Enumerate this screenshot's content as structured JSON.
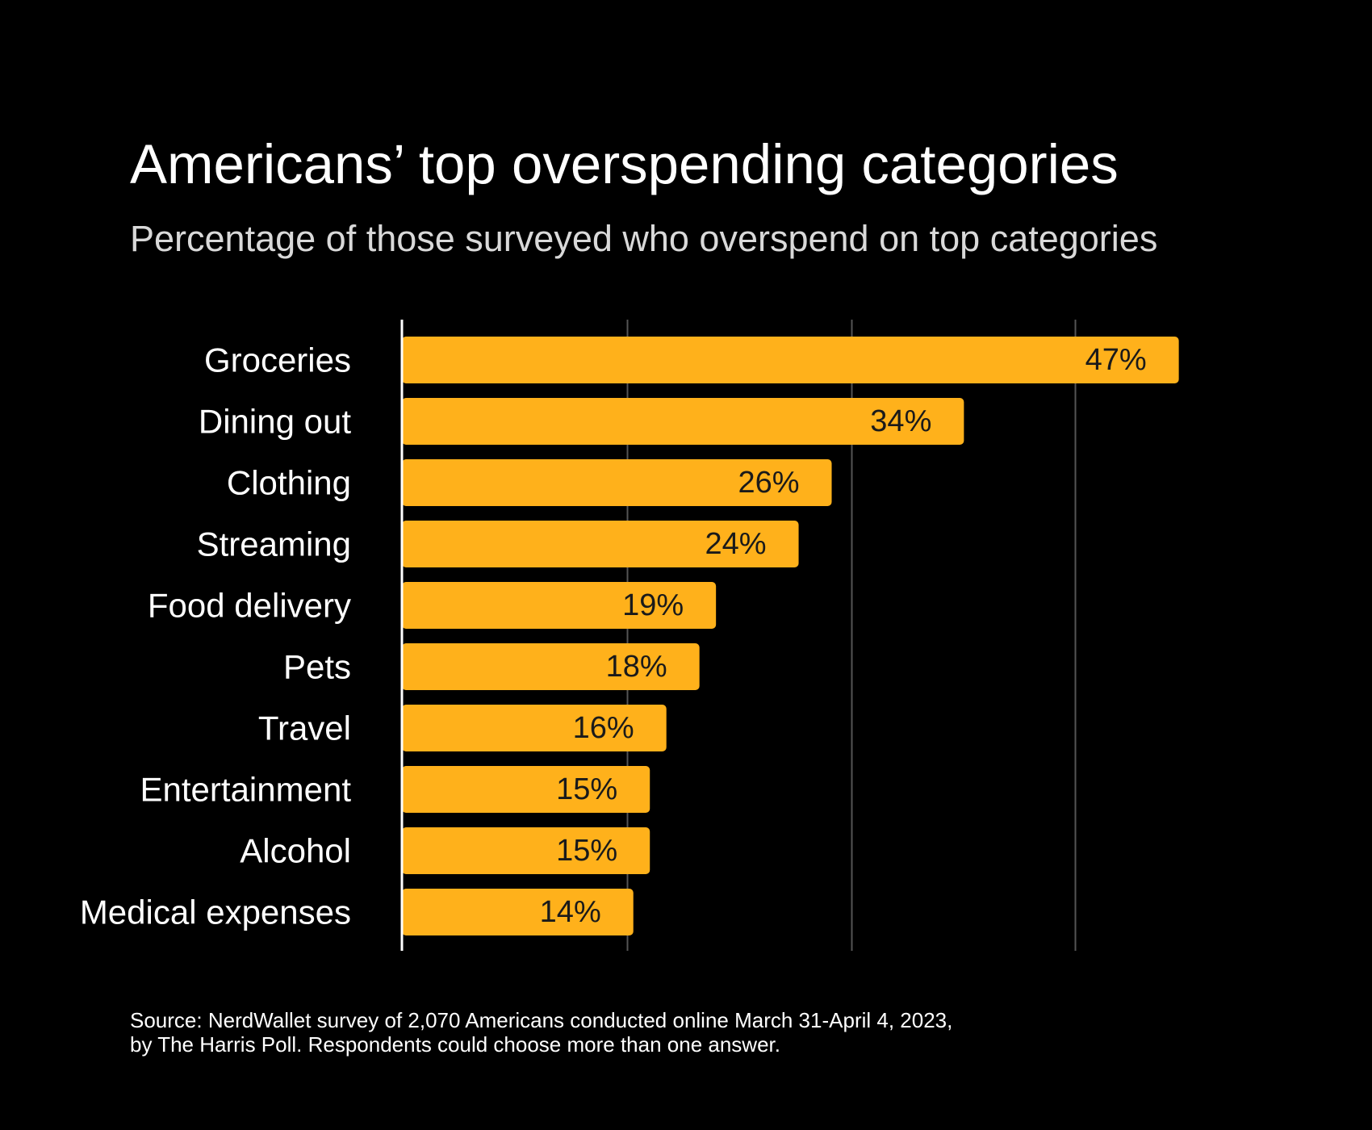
{
  "chart_data": {
    "type": "bar",
    "orientation": "horizontal",
    "title": "Americans’ top overspending categories",
    "subtitle": "Percentage of those surveyed who overspend on top categories",
    "categories": [
      "Groceries",
      "Dining out",
      "Clothing",
      "Streaming",
      "Food delivery",
      "Pets",
      "Travel",
      "Entertainment",
      "Alcohol",
      "Medical expenses"
    ],
    "values": [
      47,
      34,
      26,
      24,
      19,
      18,
      16,
      15,
      15,
      14
    ],
    "value_suffix": "%",
    "data_labels": [
      "47%",
      "34%",
      "26%",
      "24%",
      "19%",
      "18%",
      "16%",
      "15%",
      "15%",
      "14%"
    ],
    "xlim": [
      0,
      54
    ],
    "gridlines": [
      0,
      13.6,
      27.2,
      40.7
    ],
    "grid": true,
    "legend": "none",
    "xlabel": "",
    "ylabel": "",
    "colors": {
      "background": "#000000",
      "bar": "#FFB11B",
      "gridline": "#555555",
      "axis": "#ffffff",
      "title": "#ffffff",
      "subtitle": "#d9d9d9",
      "category_text": "#ffffff",
      "value_text": "#1a1a1a"
    }
  },
  "source_note": [
    "Source: NerdWallet survey of 2,070 Americans conducted online March 31-April 4, 2023,",
    "by The Harris Poll. Respondents could choose more than one answer."
  ]
}
